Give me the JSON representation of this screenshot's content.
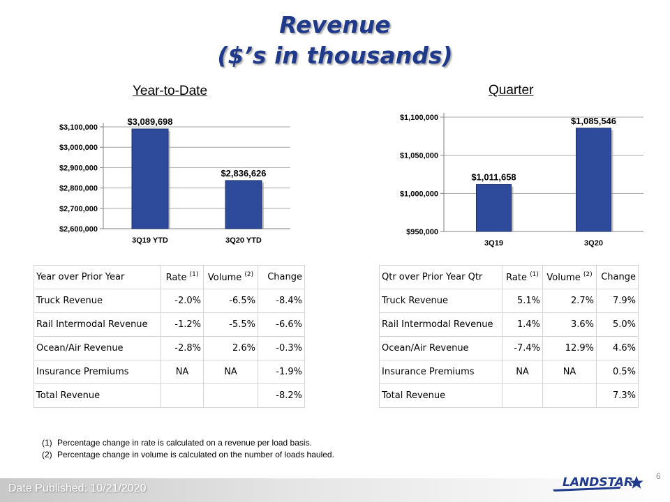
{
  "title": {
    "line1": "Revenue",
    "line2": "($’s in thousands)",
    "color": "#1f3a8a"
  },
  "ytd_heading": "Year-to-Date",
  "qtr_heading": "Quarter",
  "chart_data": [
    {
      "type": "bar",
      "categories": [
        "3Q19 YTD",
        "3Q20 YTD"
      ],
      "values": [
        3089698,
        2836626
      ],
      "value_labels": [
        "$3,089,698",
        "$2,836,626"
      ],
      "ylim": [
        2600000,
        3100000
      ],
      "yticks": [
        2600000,
        2700000,
        2800000,
        2900000,
        3000000,
        3100000
      ],
      "ytick_labels": [
        "$2,600,000",
        "$2,700,000",
        "$2,800,000",
        "$2,900,000",
        "$3,000,000",
        "$3,100,000"
      ],
      "grid": true,
      "bar_color": "#2e4b9b"
    },
    {
      "type": "bar",
      "categories": [
        "3Q19",
        "3Q20"
      ],
      "values": [
        1011658,
        1085546
      ],
      "value_labels": [
        "$1,011,658",
        "$1,085,546"
      ],
      "ylim": [
        950000,
        1100000
      ],
      "yticks": [
        950000,
        1000000,
        1050000,
        1100000
      ],
      "ytick_labels": [
        "$950,000",
        "$1,000,000",
        "$1,050,000",
        "$1,100,000"
      ],
      "grid": true,
      "bar_color": "#2e4b9b"
    }
  ],
  "ytd_table": {
    "headers": [
      "Year over Prior Year",
      "Rate",
      "Volume",
      "Change"
    ],
    "header_notes": [
      "(1)",
      "(2)"
    ],
    "rows": [
      {
        "label": "Truck Revenue",
        "rate": "-2.0%",
        "volume": "-6.5%",
        "change": "-8.4%"
      },
      {
        "label": "Rail Intermodal Revenue",
        "rate": "-1.2%",
        "volume": "-5.5%",
        "change": "-6.6%"
      },
      {
        "label": "Ocean/Air Revenue",
        "rate": "-2.8%",
        "volume": "2.6%",
        "change": "-0.3%"
      },
      {
        "label": "Insurance Premiums",
        "rate": "NA",
        "volume": "NA",
        "change": "-1.9%"
      },
      {
        "label": "Total Revenue",
        "rate": "",
        "volume": "",
        "change": "-8.2%"
      }
    ]
  },
  "qtr_table": {
    "headers": [
      "Qtr over Prior Year Qtr",
      "Rate",
      "Volume",
      "Change"
    ],
    "header_notes": [
      "(1)",
      "(2)"
    ],
    "rows": [
      {
        "label": "Truck Revenue",
        "rate": "5.1%",
        "volume": "2.7%",
        "change": "7.9%"
      },
      {
        "label": "Rail Intermodal Revenue",
        "rate": "1.4%",
        "volume": "3.6%",
        "change": "5.0%"
      },
      {
        "label": "Ocean/Air Revenue",
        "rate": "-7.4%",
        "volume": "12.9%",
        "change": "4.6%"
      },
      {
        "label": "Insurance Premiums",
        "rate": "NA",
        "volume": "NA",
        "change": "0.5%"
      },
      {
        "label": "Total Revenue",
        "rate": "",
        "volume": "",
        "change": "7.3%"
      }
    ]
  },
  "footnotes": [
    {
      "num": "(1)",
      "text": "Percentage change in rate is calculated on a revenue per load basis."
    },
    {
      "num": "(2)",
      "text": "Percentage change in volume is calculated on the number of loads hauled."
    }
  ],
  "footer": {
    "published": "Date Published:  10/21/2020",
    "page": "6",
    "logo_text": "LANDSTAR"
  }
}
